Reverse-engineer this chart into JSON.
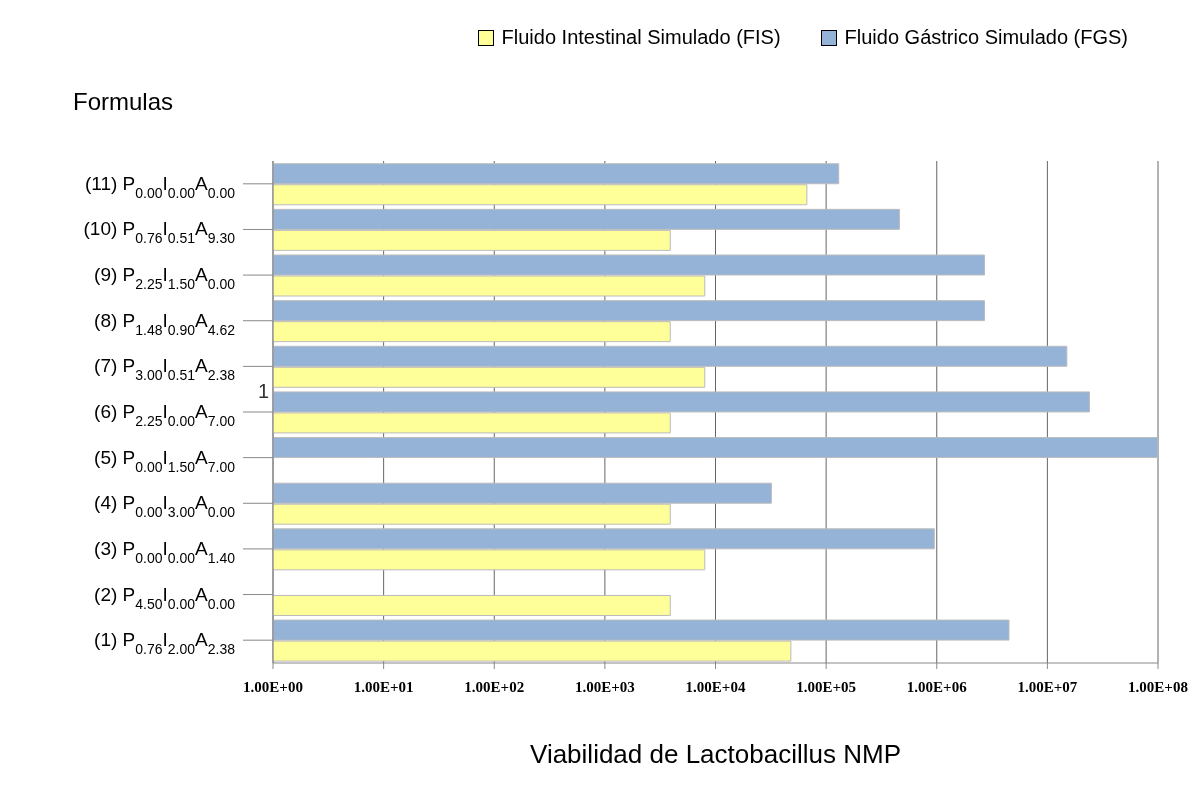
{
  "chart_data": {
    "type": "bar",
    "orientation": "horizontal",
    "ylabel": "Formulas",
    "xlabel": "Viabilidad de Lactobacillus NMP",
    "categories": [
      "(11) P$_{0.00}$I$_{0.00}$A$_{0.00}$",
      "(10) P$_{0.76}$I$_{0.51}$A$_{9.30}$",
      "(9) P$_{2.25}$I$_{1.50}$A$_{0.00}$",
      "(8) P$_{1.48}$I$_{0.90}$A$_{4.62}$",
      "(7) P$_{3.00}$I$_{0.51}$A$_{2.38}$",
      "(6) P$_{2.25}$I$_{0.00}$A$_{7.00}$",
      "(5) P$_{0.00}$I$_{1.50}$A$_{7.00}$",
      "(4) P$_{0.00}$I$_{3.00}$A$_{0.00}$",
      "(3) P$_{0.00}$I$_{0.00}$A$_{1.40}$",
      "(2) P$_{4.50}$I$_{0.00}$A$_{0.00}$",
      "(1) P$_{0.76}$I$_{2.00}$A$_{2.38}$"
    ],
    "series": [
      {
        "name": "Fluido Gástrico Simulado (FGS)",
        "color": "#95b3d7",
        "values": [
          130000,
          460000,
          2700000,
          2700000,
          15000000,
          24000000,
          100000000,
          32000,
          950000,
          null,
          4500000
        ]
      },
      {
        "name": "Fluido Intestinal Simulado (FIS)",
        "color": "#ffff99",
        "values": [
          67000,
          3900,
          8000,
          3900,
          8000,
          3900,
          null,
          3900,
          8000,
          3900,
          48000
        ]
      }
    ],
    "log": "x",
    "xlim": [
      1,
      100000000
    ],
    "xticks": [
      {
        "value": 1,
        "label": "1.00E+00"
      },
      {
        "value": 10,
        "label": "1.00E+01"
      },
      {
        "value": 100,
        "label": "1.00E+02"
      },
      {
        "value": 1000,
        "label": "1.00E+03"
      },
      {
        "value": 10000,
        "label": "1.00E+04"
      },
      {
        "value": 100000,
        "label": "1.00E+05"
      },
      {
        "value": 1000000,
        "label": "1.00E+06"
      },
      {
        "value": 10000000,
        "label": "1.00E+07"
      },
      {
        "value": 100000000,
        "label": "1.00E+08"
      }
    ],
    "grid": "x",
    "legend": "top right",
    "annotations": [
      "1"
    ]
  }
}
